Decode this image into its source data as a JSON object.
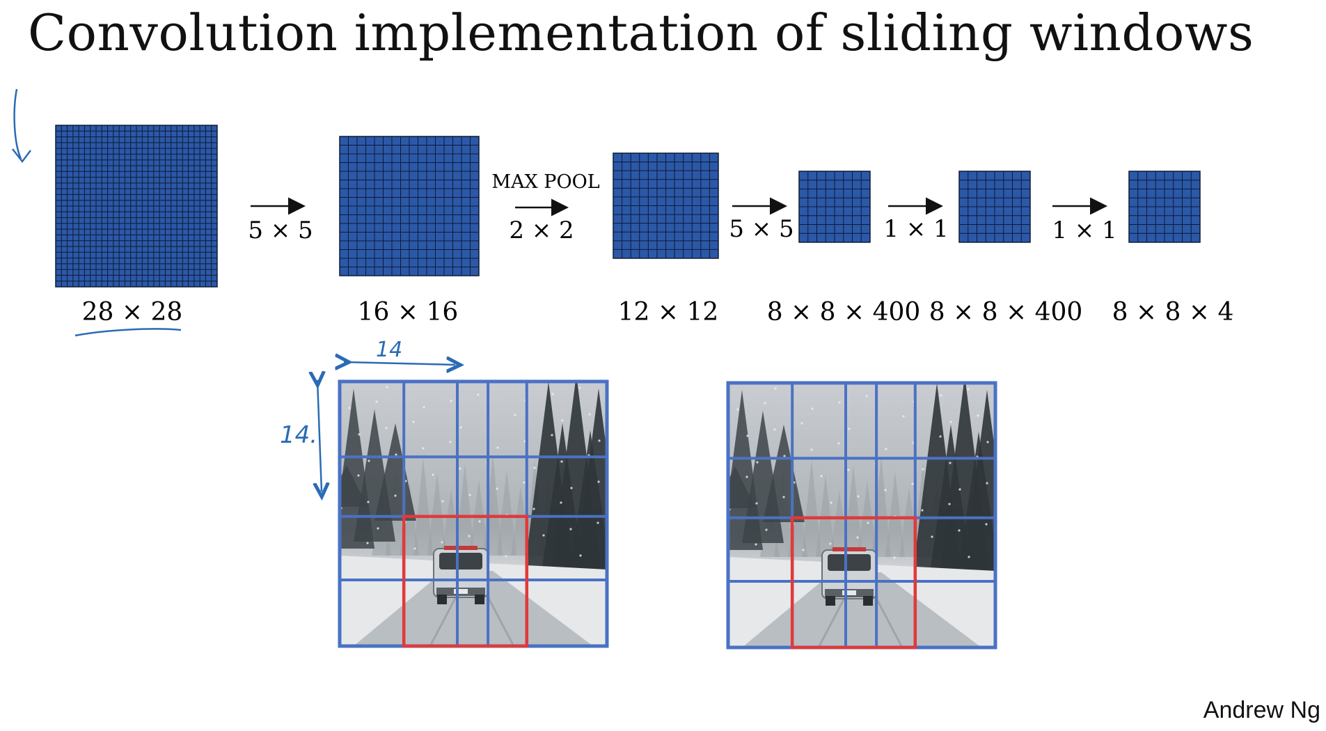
{
  "title": "Convolution implementation of sliding windows",
  "author": "Andrew Ng",
  "colors": {
    "volume_fill": "#2c58a8",
    "volume_grid": "#0d1b33",
    "window_grid": "#4a72c4",
    "highlight": "#e03a3a",
    "annotation_ink": "#2a6bb5"
  },
  "stages": [
    {
      "grid": 28,
      "dims_label": "28 × 28"
    },
    {
      "grid": 16,
      "dims_label": "16 × 16"
    },
    {
      "grid": 12,
      "dims_label": "12 × 12"
    },
    {
      "grid": 8,
      "dims_label": "8 × 8 × 400"
    },
    {
      "grid": 8,
      "dims_label": "8 × 8 × 400"
    },
    {
      "grid": 8,
      "dims_label": "8 × 8 × 4"
    }
  ],
  "transitions": [
    {
      "top": "",
      "bottom": "5 × 5"
    },
    {
      "top": "MAX POOL",
      "bottom": "2 × 2"
    },
    {
      "top": "",
      "bottom": "5 × 5"
    },
    {
      "top": "",
      "bottom": "1 × 1"
    },
    {
      "top": "",
      "bottom": "1 × 1"
    }
  ],
  "annotations": {
    "width_mark": "14",
    "height_mark": "14."
  },
  "photo_panels": [
    {
      "name": "left-photo-panel"
    },
    {
      "name": "right-photo-panel"
    }
  ]
}
